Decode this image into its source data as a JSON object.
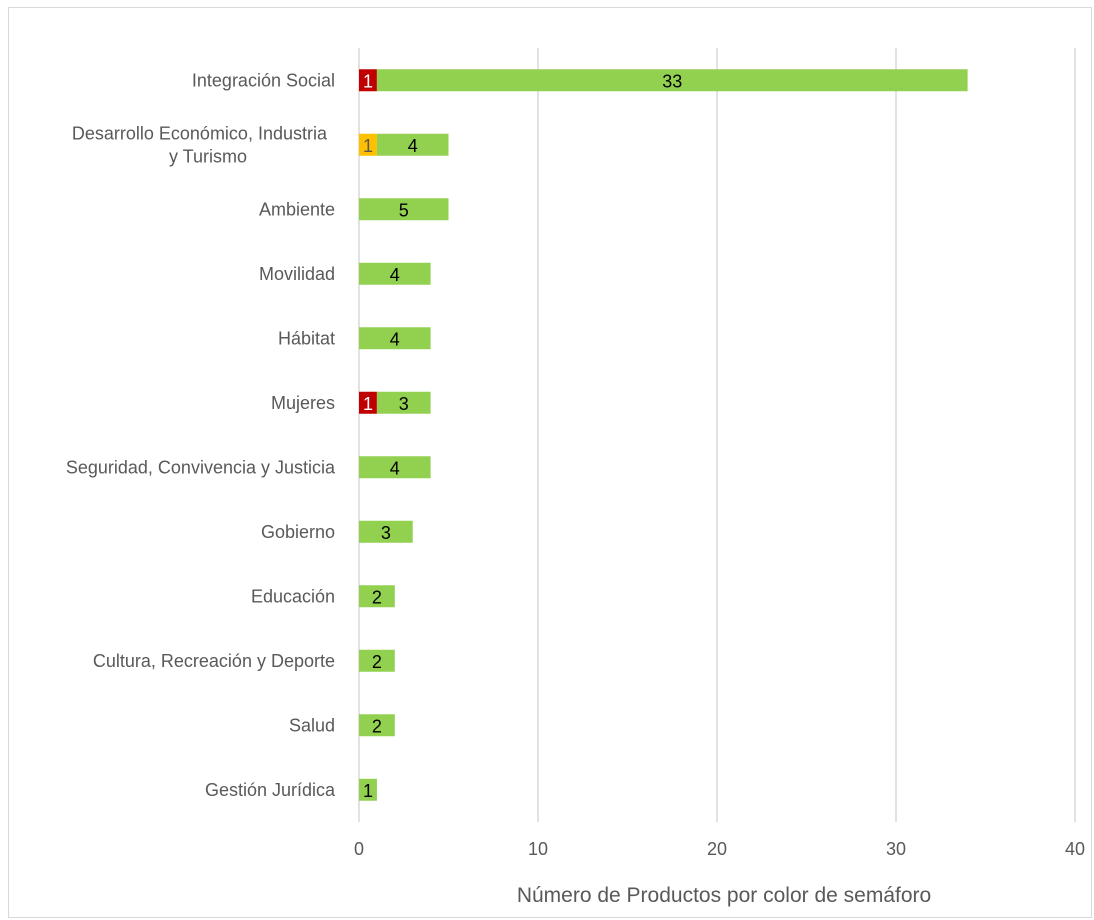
{
  "chart_data": {
    "type": "bar",
    "orientation": "horizontal",
    "stacked": true,
    "title": "",
    "xlabel": "Número de Productos por color de semáforo",
    "ylabel": "",
    "xlim": [
      0,
      40
    ],
    "xticks": [
      "0",
      "10",
      "20",
      "30",
      "40"
    ],
    "grid": "vertical",
    "legend": "none",
    "categories": [
      [
        "Integración Social"
      ],
      [
        "Desarrollo Económico, Industria",
        "y Turismo"
      ],
      [
        "Ambiente"
      ],
      [
        "Movilidad"
      ],
      [
        "Hábitat"
      ],
      [
        "Mujeres"
      ],
      [
        "Seguridad, Convivencia y Justicia"
      ],
      [
        "Gobierno"
      ],
      [
        "Educación"
      ],
      [
        "Cultura, Recreación y Deporte"
      ],
      [
        "Salud"
      ],
      [
        "Gestión Jurídica"
      ]
    ],
    "series": [
      {
        "color": "#c00000",
        "label_color": "#ffffff",
        "values": [
          1,
          0,
          0,
          0,
          0,
          1,
          0,
          0,
          0,
          0,
          0,
          0
        ]
      },
      {
        "color": "#ffc000",
        "label_color": "#595959",
        "values": [
          0,
          1,
          0,
          0,
          0,
          0,
          0,
          0,
          0,
          0,
          0,
          0
        ]
      },
      {
        "color": "#92d050",
        "label_color": "#000000",
        "values": [
          33,
          4,
          5,
          4,
          4,
          3,
          4,
          3,
          2,
          2,
          2,
          1
        ]
      }
    ]
  },
  "colors": {
    "gridline": "#d9d9d9",
    "axis_text": "#595959"
  }
}
